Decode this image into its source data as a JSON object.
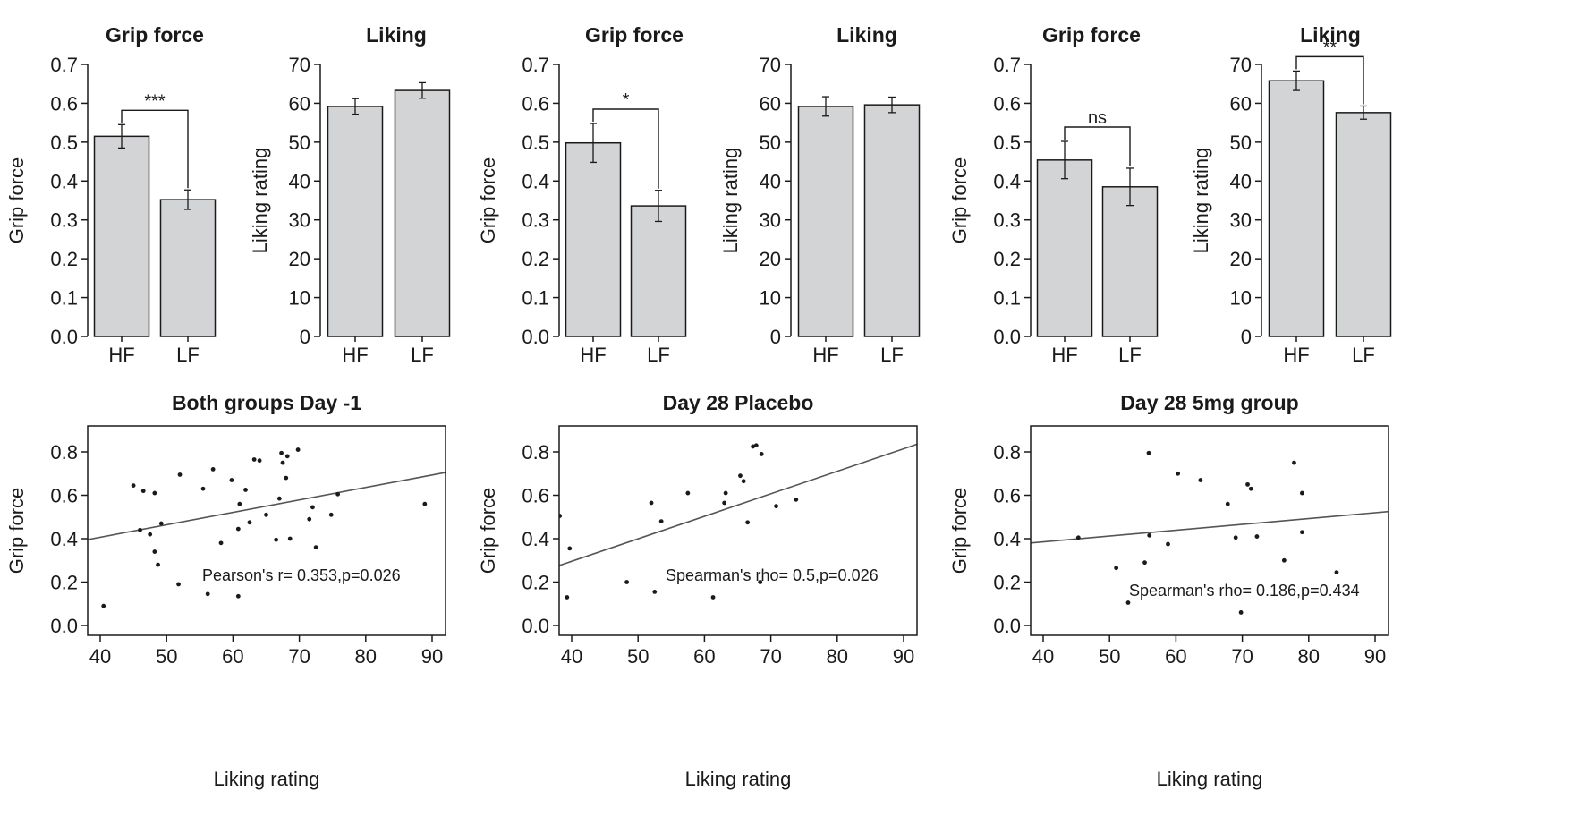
{
  "colors": {
    "bar_fill": "#d3d4d6",
    "ink": "#1a1a1a",
    "regression_line": "#555555"
  },
  "chart_data": [
    {
      "type": "bar",
      "title": "Grip force",
      "xlabel": "",
      "ylabel": "Grip force",
      "categories": [
        "HF",
        "LF"
      ],
      "values": [
        0.515,
        0.352
      ],
      "errors": [
        0.03,
        0.025
      ],
      "ylim": [
        0,
        0.7
      ],
      "yticks": [
        "0.0",
        "0.1",
        "0.2",
        "0.3",
        "0.4",
        "0.5",
        "0.6",
        "0.7"
      ],
      "significance": "***",
      "grid": false
    },
    {
      "type": "bar",
      "title": "Liking",
      "xlabel": "",
      "ylabel": "Liking rating",
      "categories": [
        "HF",
        "LF"
      ],
      "values": [
        59.2,
        63.3
      ],
      "errors": [
        2.0,
        2.0
      ],
      "ylim": [
        0,
        70
      ],
      "yticks": [
        "0",
        "10",
        "20",
        "30",
        "40",
        "50",
        "60",
        "70"
      ],
      "significance": "",
      "grid": false
    },
    {
      "type": "bar",
      "title": "Grip force",
      "xlabel": "",
      "ylabel": "Grip force",
      "categories": [
        "HF",
        "LF"
      ],
      "values": [
        0.498,
        0.336
      ],
      "errors": [
        0.05,
        0.04
      ],
      "ylim": [
        0,
        0.7
      ],
      "yticks": [
        "0.0",
        "0.1",
        "0.2",
        "0.3",
        "0.4",
        "0.5",
        "0.6",
        "0.7"
      ],
      "significance": "*",
      "grid": false
    },
    {
      "type": "bar",
      "title": "Liking",
      "xlabel": "",
      "ylabel": "Liking rating",
      "categories": [
        "HF",
        "LF"
      ],
      "values": [
        59.2,
        59.6
      ],
      "errors": [
        2.5,
        2.0
      ],
      "ylim": [
        0,
        70
      ],
      "yticks": [
        "0",
        "10",
        "20",
        "30",
        "40",
        "50",
        "60",
        "70"
      ],
      "significance": "",
      "grid": false
    },
    {
      "type": "bar",
      "title": "Grip force",
      "xlabel": "",
      "ylabel": "Grip force",
      "categories": [
        "HF",
        "LF"
      ],
      "values": [
        0.454,
        0.385
      ],
      "errors": [
        0.048,
        0.048
      ],
      "ylim": [
        0,
        0.7
      ],
      "yticks": [
        "0.0",
        "0.1",
        "0.2",
        "0.3",
        "0.4",
        "0.5",
        "0.6",
        "0.7"
      ],
      "significance": "ns",
      "grid": false
    },
    {
      "type": "bar",
      "title": "Liking",
      "xlabel": "",
      "ylabel": "Liking rating",
      "categories": [
        "HF",
        "LF"
      ],
      "values": [
        65.8,
        57.6
      ],
      "errors": [
        2.5,
        1.7
      ],
      "ylim": [
        0,
        70
      ],
      "yticks": [
        "0",
        "10",
        "20",
        "30",
        "40",
        "50",
        "60",
        "70"
      ],
      "significance": "**",
      "grid": false
    },
    {
      "type": "scatter",
      "title": "Both groups Day -1",
      "xlabel": "Liking rating",
      "ylabel": "Grip force",
      "xlim": [
        38,
        92
      ],
      "ylim": [
        -0.05,
        0.92
      ],
      "xticks": [
        "40",
        "50",
        "60",
        "70",
        "80",
        "90"
      ],
      "yticks": [
        "0.0",
        "0.2",
        "0.4",
        "0.6",
        "0.8"
      ],
      "annotation": "Pearson's r= 0.353,p=0.026",
      "regression": {
        "x": [
          38,
          92
        ],
        "y": [
          0.395,
          0.705
        ]
      },
      "points": [
        [
          40.5,
          0.09
        ],
        [
          45,
          0.645
        ],
        [
          46,
          0.44
        ],
        [
          46.5,
          0.62
        ],
        [
          47.5,
          0.42
        ],
        [
          48.2,
          0.61
        ],
        [
          48.2,
          0.34
        ],
        [
          48.7,
          0.28
        ],
        [
          49.2,
          0.47
        ],
        [
          51.8,
          0.19
        ],
        [
          52,
          0.695
        ],
        [
          55.5,
          0.63
        ],
        [
          56.2,
          0.145
        ],
        [
          57,
          0.72
        ],
        [
          58.2,
          0.38
        ],
        [
          59.8,
          0.67
        ],
        [
          60.8,
          0.135
        ],
        [
          60.8,
          0.445
        ],
        [
          61,
          0.56
        ],
        [
          61.9,
          0.625
        ],
        [
          62.5,
          0.475
        ],
        [
          63.2,
          0.765
        ],
        [
          64,
          0.76
        ],
        [
          65,
          0.51
        ],
        [
          66.5,
          0.395
        ],
        [
          67,
          0.585
        ],
        [
          67.3,
          0.795
        ],
        [
          67.5,
          0.75
        ],
        [
          68.2,
          0.78
        ],
        [
          68,
          0.68
        ],
        [
          68.6,
          0.4
        ],
        [
          69.8,
          0.81
        ],
        [
          71.5,
          0.49
        ],
        [
          72,
          0.545
        ],
        [
          72.5,
          0.36
        ],
        [
          74.8,
          0.51
        ],
        [
          75.8,
          0.605
        ],
        [
          88.9,
          0.56
        ]
      ]
    },
    {
      "type": "scatter",
      "title": "Day 28 Placebo",
      "xlabel": "Liking rating",
      "ylabel": "Grip force",
      "xlim": [
        38,
        92
      ],
      "ylim": [
        -0.05,
        0.92
      ],
      "xticks": [
        "40",
        "50",
        "60",
        "70",
        "80",
        "90"
      ],
      "yticks": [
        "0.0",
        "0.2",
        "0.4",
        "0.6",
        "0.8"
      ],
      "annotation": "Spearman's rho= 0.5,p=0.026",
      "regression": {
        "x": [
          38,
          92
        ],
        "y": [
          0.275,
          0.835
        ]
      },
      "points": [
        [
          38.2,
          0.505
        ],
        [
          39.3,
          0.13
        ],
        [
          39.7,
          0.355
        ],
        [
          48.3,
          0.2
        ],
        [
          52,
          0.565
        ],
        [
          52.5,
          0.155
        ],
        [
          53.5,
          0.48
        ],
        [
          57.5,
          0.61
        ],
        [
          61.3,
          0.13
        ],
        [
          63,
          0.565
        ],
        [
          63.2,
          0.61
        ],
        [
          65.4,
          0.69
        ],
        [
          65.9,
          0.665
        ],
        [
          66.5,
          0.475
        ],
        [
          67.3,
          0.825
        ],
        [
          67.8,
          0.83
        ],
        [
          68.4,
          0.2
        ],
        [
          68.6,
          0.79
        ],
        [
          70.8,
          0.55
        ],
        [
          73.8,
          0.58
        ]
      ]
    },
    {
      "type": "scatter",
      "title": "Day 28 5mg group",
      "xlabel": "Liking rating",
      "ylabel": "Grip force",
      "xlim": [
        38,
        92
      ],
      "ylim": [
        -0.05,
        0.92
      ],
      "xticks": [
        "40",
        "50",
        "60",
        "70",
        "80",
        "90"
      ],
      "yticks": [
        "0.0",
        "0.2",
        "0.4",
        "0.6",
        "0.8"
      ],
      "annotation": "Spearman's rho= 0.186,p=0.434",
      "regression": {
        "x": [
          38,
          92
        ],
        "y": [
          0.38,
          0.525
        ]
      },
      "points": [
        [
          45.3,
          0.405
        ],
        [
          51,
          0.265
        ],
        [
          52.8,
          0.105
        ],
        [
          55.3,
          0.29
        ],
        [
          55.9,
          0.795
        ],
        [
          56,
          0.415
        ],
        [
          58.8,
          0.375
        ],
        [
          60.3,
          0.7
        ],
        [
          63.7,
          0.67
        ],
        [
          67.8,
          0.56
        ],
        [
          69,
          0.405
        ],
        [
          69.8,
          0.06
        ],
        [
          70.8,
          0.65
        ],
        [
          71.3,
          0.63
        ],
        [
          72.2,
          0.41
        ],
        [
          76.3,
          0.3
        ],
        [
          77.8,
          0.75
        ],
        [
          79,
          0.61
        ],
        [
          79,
          0.43
        ],
        [
          84.2,
          0.245
        ]
      ]
    }
  ]
}
